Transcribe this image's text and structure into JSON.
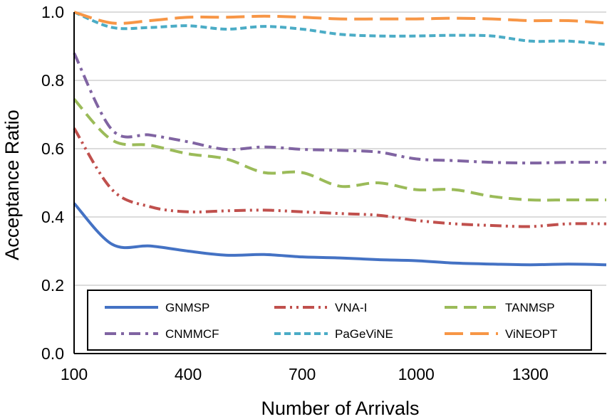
{
  "chart_data": {
    "type": "line",
    "title": "",
    "xlabel": "Number of Arrivals",
    "ylabel": "Acceptance Ratio",
    "xlim": [
      100,
      1500
    ],
    "ylim": [
      0,
      1
    ],
    "xticks": [
      100,
      400,
      700,
      1000,
      1300
    ],
    "xtick_labels": [
      "100",
      "400",
      "700",
      "1000",
      "1300"
    ],
    "yticks": [
      0,
      0.2,
      0.4,
      0.6,
      0.8,
      1.0
    ],
    "ytick_labels": [
      "0.0",
      "0.2",
      "0.4",
      "0.6",
      "0.8",
      "1.0"
    ],
    "grid": "horizontal",
    "legend_position": "bottom",
    "x": [
      100,
      200,
      300,
      400,
      500,
      600,
      700,
      800,
      900,
      1000,
      1100,
      1200,
      1300,
      1400,
      1500
    ],
    "series": [
      {
        "name": "GNMSP",
        "color": "#4472C4",
        "dash": "solid",
        "values": [
          0.44,
          0.32,
          0.315,
          0.3,
          0.288,
          0.29,
          0.283,
          0.28,
          0.275,
          0.272,
          0.265,
          0.262,
          0.26,
          0.262,
          0.26
        ]
      },
      {
        "name": "VNA-I",
        "color": "#C0504D",
        "dash": "dashdotdot",
        "values": [
          0.66,
          0.48,
          0.43,
          0.415,
          0.418,
          0.42,
          0.415,
          0.41,
          0.405,
          0.39,
          0.38,
          0.375,
          0.372,
          0.38,
          0.38
        ]
      },
      {
        "name": "TANMSP",
        "color": "#9BBB59",
        "dash": "dash",
        "values": [
          0.745,
          0.625,
          0.61,
          0.585,
          0.57,
          0.53,
          0.53,
          0.49,
          0.5,
          0.48,
          0.48,
          0.46,
          0.45,
          0.45,
          0.45
        ]
      },
      {
        "name": "CNMMCF",
        "color": "#8064A2",
        "dash": "dashdot",
        "values": [
          0.88,
          0.655,
          0.64,
          0.62,
          0.598,
          0.605,
          0.598,
          0.595,
          0.59,
          0.57,
          0.565,
          0.56,
          0.558,
          0.56,
          0.56
        ]
      },
      {
        "name": "PaGeViNE",
        "color": "#4BACC6",
        "dash": "shortdash",
        "values": [
          1.0,
          0.955,
          0.955,
          0.96,
          0.95,
          0.958,
          0.95,
          0.935,
          0.93,
          0.93,
          0.932,
          0.93,
          0.915,
          0.915,
          0.905
        ]
      },
      {
        "name": "ViNEOPT",
        "color": "#F79646",
        "dash": "longdash",
        "values": [
          1.0,
          0.968,
          0.975,
          0.985,
          0.985,
          0.988,
          0.985,
          0.98,
          0.98,
          0.98,
          0.982,
          0.98,
          0.975,
          0.975,
          0.968
        ]
      }
    ]
  }
}
